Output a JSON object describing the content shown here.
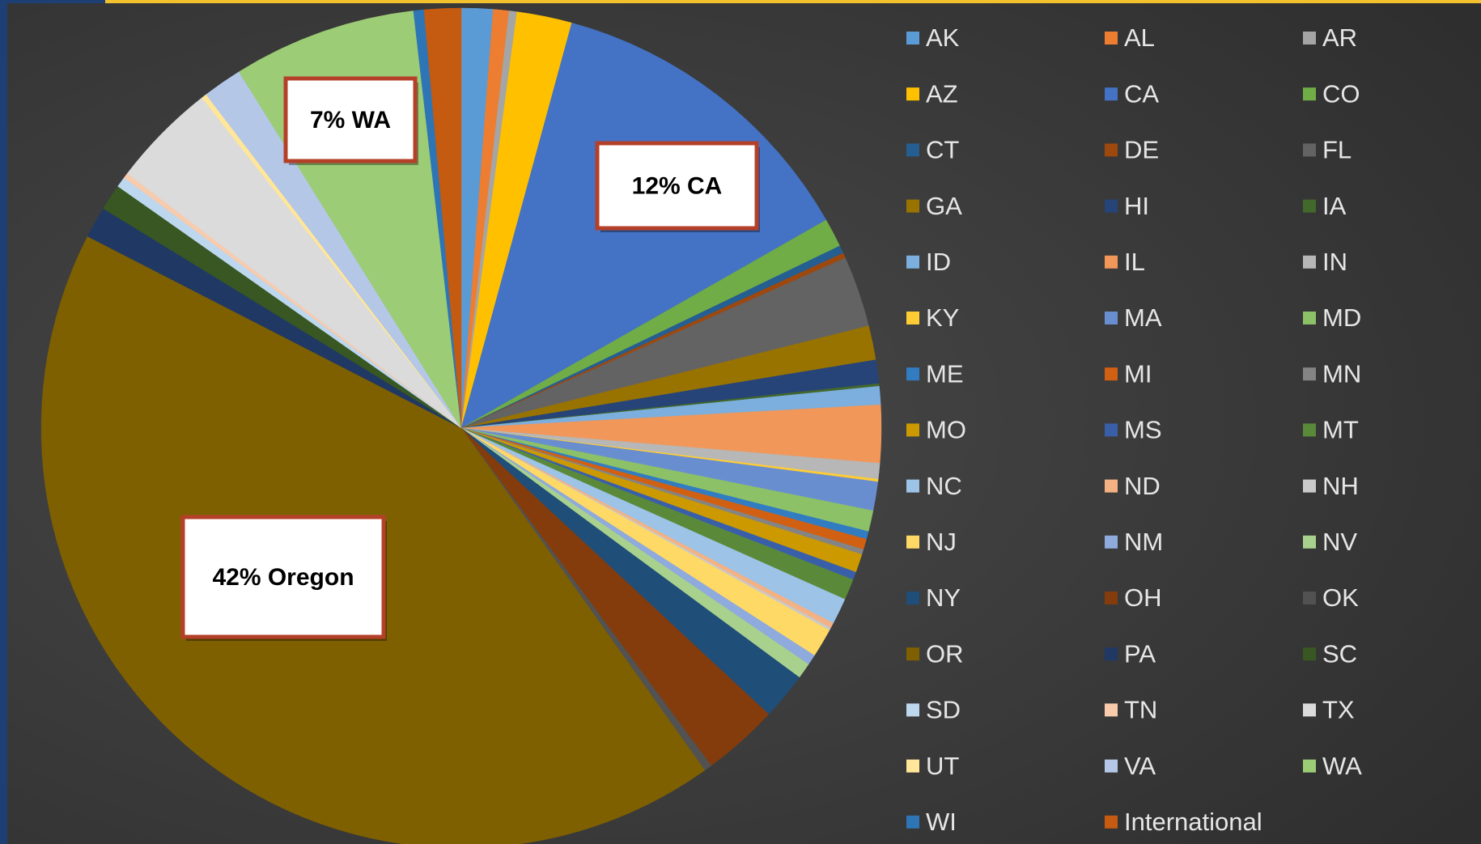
{
  "chart_data": {
    "type": "pie",
    "categories": [
      "AK",
      "AL",
      "AR",
      "AZ",
      "CA",
      "CO",
      "CT",
      "DE",
      "FL",
      "GA",
      "HI",
      "IA",
      "ID",
      "IL",
      "IN",
      "KY",
      "MA",
      "MD",
      "ME",
      "MI",
      "MN",
      "MO",
      "MS",
      "MT",
      "NC",
      "ND",
      "NH",
      "NJ",
      "NM",
      "NV",
      "NY",
      "OH",
      "OK",
      "OR",
      "PA",
      "SC",
      "SD",
      "TN",
      "TX",
      "UT",
      "VA",
      "WA",
      "WI",
      "International"
    ],
    "values": [
      1.2,
      0.6,
      0.3,
      2.1,
      12.4,
      1.1,
      0.3,
      0.2,
      2.7,
      1.3,
      0.9,
      0.1,
      0.7,
      2.2,
      0.6,
      0.1,
      1.1,
      0.8,
      0.3,
      0.4,
      0.2,
      0.7,
      0.3,
      0.8,
      1.0,
      0.2,
      0.1,
      1.1,
      0.4,
      0.6,
      1.8,
      2.9,
      0.3,
      42,
      1.2,
      1.0,
      0.4,
      0.2,
      4.0,
      0.2,
      1.5,
      7.0,
      0.4,
      1.4
    ],
    "colors": [
      "#5B9BD5",
      "#ED7D31",
      "#A5A5A5",
      "#FFC000",
      "#4472C4",
      "#70AD47",
      "#255E91",
      "#9E480E",
      "#636363",
      "#997300",
      "#264478",
      "#43682B",
      "#7CAFDD",
      "#F1975A",
      "#B7B7B7",
      "#FFCD33",
      "#698ED0",
      "#8CC168",
      "#327DC2",
      "#D26012",
      "#848484",
      "#CC9A00",
      "#3A5FA9",
      "#5A8A39",
      "#9DC3E6",
      "#F4B183",
      "#C9C9C9",
      "#FFD966",
      "#8FAADC",
      "#A9D18E",
      "#1F4E79",
      "#843C0C",
      "#525252",
      "#7F6000",
      "#203864",
      "#385723",
      "#BDD7EE",
      "#F8CBAD",
      "#DBDBDB",
      "#FFE699",
      "#B4C7E7",
      "#9CCC75",
      "#2E75B6",
      "#C55A11"
    ],
    "annotations": [
      "42% Oregon",
      "12% CA",
      "7% WA"
    ]
  }
}
